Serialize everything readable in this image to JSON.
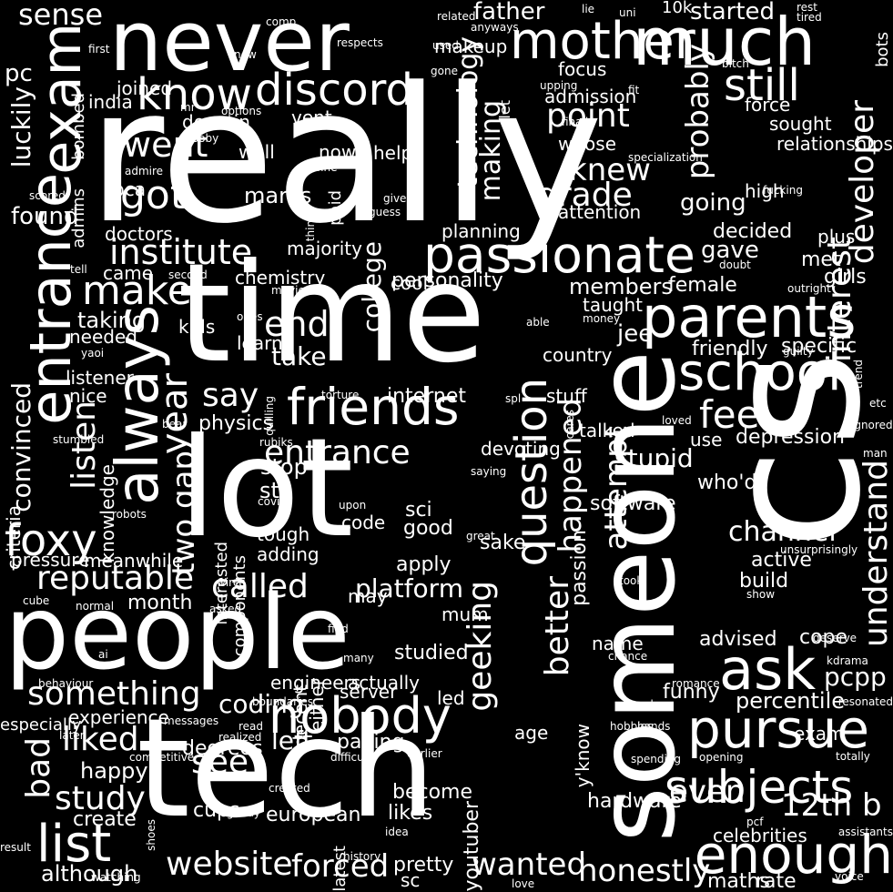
{
  "colors": {
    "background": "#000000",
    "text": "#ffffff"
  },
  "words": [
    {
      "text": "really",
      "size": 5
    },
    {
      "text": "time",
      "size": 5
    },
    {
      "text": "lot",
      "size": 5
    },
    {
      "text": "tech",
      "size": 5
    },
    {
      "text": "people",
      "size": 5
    },
    {
      "text": "someone",
      "size": 5
    },
    {
      "text": "cs",
      "size": 5
    },
    {
      "text": "never",
      "size": 4
    },
    {
      "text": "much",
      "size": 4
    },
    {
      "text": "mother",
      "size": 4
    },
    {
      "text": "exam",
      "size": 4
    },
    {
      "text": "entrance",
      "size": 4
    },
    {
      "text": "always",
      "size": 4
    },
    {
      "text": "friends",
      "size": 4
    },
    {
      "text": "passionate",
      "size": 4
    },
    {
      "text": "parents",
      "size": 4
    },
    {
      "text": "school",
      "size": 4
    },
    {
      "text": "ask",
      "size": 4
    },
    {
      "text": "pursue",
      "size": 4
    },
    {
      "text": "enough",
      "size": 4
    },
    {
      "text": "subjects",
      "size": 4
    },
    {
      "text": "foxy",
      "size": 4
    },
    {
      "text": "list",
      "size": 4
    },
    {
      "text": "nobody",
      "size": 4
    },
    {
      "text": "question",
      "size": 4
    },
    {
      "text": "discord",
      "size": 3
    },
    {
      "text": "know",
      "size": 3
    },
    {
      "text": "still",
      "size": 3
    },
    {
      "text": "got",
      "size": 3
    },
    {
      "text": "make",
      "size": 3
    },
    {
      "text": "went",
      "size": 3
    },
    {
      "text": "institute",
      "size": 3
    },
    {
      "text": "point",
      "size": 3
    },
    {
      "text": "grade",
      "size": 3
    },
    {
      "text": "knew",
      "size": 3
    },
    {
      "text": "probably",
      "size": 3
    },
    {
      "text": "developer",
      "size": 3
    },
    {
      "text": "interest",
      "size": 3
    },
    {
      "text": "feel",
      "size": 3
    },
    {
      "text": "year",
      "size": 3
    },
    {
      "text": "say",
      "size": 3
    },
    {
      "text": "end",
      "size": 3
    },
    {
      "text": "reputable",
      "size": 3
    },
    {
      "text": "called",
      "size": 3
    },
    {
      "text": "something",
      "size": 3
    },
    {
      "text": "bad",
      "size": 3
    },
    {
      "text": "liked",
      "size": 3
    },
    {
      "text": "study",
      "size": 3
    },
    {
      "text": "website",
      "size": 3
    },
    {
      "text": "forced",
      "size": 3
    },
    {
      "text": "wanted",
      "size": 3
    },
    {
      "text": "better",
      "size": 3
    },
    {
      "text": "geeking",
      "size": 3
    },
    {
      "text": "understand",
      "size": 3
    },
    {
      "text": "attempt",
      "size": 3
    },
    {
      "text": "happened",
      "size": 3
    },
    {
      "text": "12th b",
      "size": 3
    },
    {
      "text": "even",
      "size": 3
    },
    {
      "text": "honestly",
      "size": 3
    },
    {
      "text": "technology",
      "size": 3
    },
    {
      "text": "making",
      "size": 3
    },
    {
      "text": "listen",
      "size": 3
    },
    {
      "text": "two gap",
      "size": 3
    },
    {
      "text": "entrance",
      "size": 3
    },
    {
      "text": "see",
      "size": 3
    },
    {
      "text": "channel",
      "size": 3
    },
    {
      "text": "stupid",
      "size": 3
    },
    {
      "text": "platform",
      "size": 3
    },
    {
      "text": "left",
      "size": 3
    },
    {
      "text": "take",
      "size": 3
    },
    {
      "text": "coding",
      "size": 3
    },
    {
      "text": "jee",
      "size": 3
    },
    {
      "text": "pcpp",
      "size": 3
    },
    {
      "text": "sense",
      "size": 2
    },
    {
      "text": "father",
      "size": 2
    },
    {
      "text": "started",
      "size": 2
    },
    {
      "text": "pc",
      "size": 2
    },
    {
      "text": "luckily",
      "size": 2
    },
    {
      "text": "found",
      "size": 2
    },
    {
      "text": "marks",
      "size": 2
    },
    {
      "text": "going",
      "size": 2
    },
    {
      "text": "gave",
      "size": 2
    },
    {
      "text": "taking",
      "size": 2
    },
    {
      "text": "members",
      "size": 2
    },
    {
      "text": "college",
      "size": 2
    },
    {
      "text": "convinced",
      "size": 2
    },
    {
      "text": "month",
      "size": 2
    },
    {
      "text": "sth",
      "size": 2
    },
    {
      "text": "stop",
      "size": 2
    },
    {
      "text": "happy",
      "size": 2
    },
    {
      "text": "although",
      "size": 2
    },
    {
      "text": "percentile",
      "size": 2
    },
    {
      "text": "advised",
      "size": 2
    },
    {
      "text": "cope",
      "size": 2
    },
    {
      "text": "funny",
      "size": 2
    },
    {
      "text": "passion",
      "size": 2
    },
    {
      "text": "specific",
      "size": 2
    },
    {
      "text": "depression",
      "size": 2
    },
    {
      "text": "friendly",
      "size": 2
    },
    {
      "text": "decided",
      "size": 2
    },
    {
      "text": "plus",
      "size": 2
    },
    {
      "text": "girls",
      "size": 2
    },
    {
      "text": "female",
      "size": 2
    },
    {
      "text": "met",
      "size": 2
    },
    {
      "text": "build",
      "size": 2
    },
    {
      "text": "active",
      "size": 2
    },
    {
      "text": "software",
      "size": 2
    },
    {
      "text": "who'd",
      "size": 2
    },
    {
      "text": "sci",
      "size": 2
    },
    {
      "text": "good",
      "size": 2
    },
    {
      "text": "sake",
      "size": 2
    },
    {
      "text": "apply",
      "size": 2
    },
    {
      "text": "studied",
      "size": 2
    },
    {
      "text": "pretty",
      "size": 2
    },
    {
      "text": "likes",
      "size": 2
    },
    {
      "text": "become",
      "size": 2
    },
    {
      "text": "youtuber",
      "size": 2
    },
    {
      "text": "hardware",
      "size": 2
    },
    {
      "text": "exam",
      "size": 2
    },
    {
      "text": "maths",
      "size": 2
    },
    {
      "text": "rate",
      "size": 2
    },
    {
      "text": "celebrities",
      "size": 2
    },
    {
      "text": "cups",
      "size": 2
    },
    {
      "text": "create",
      "size": 2
    },
    {
      "text": "european",
      "size": 2
    },
    {
      "text": "degrees",
      "size": 2
    },
    {
      "text": "paying",
      "size": 2
    },
    {
      "text": "physics",
      "size": 2
    },
    {
      "text": "internet",
      "size": 2
    },
    {
      "text": "stuff",
      "size": 2
    },
    {
      "text": "talked",
      "size": 2
    },
    {
      "text": "devoting",
      "size": 2
    },
    {
      "text": "use",
      "size": 2
    },
    {
      "text": "country",
      "size": 2
    },
    {
      "text": "taught",
      "size": 2
    },
    {
      "text": "personality",
      "size": 2
    },
    {
      "text": "majority",
      "size": 2
    },
    {
      "text": "chemistry",
      "size": 2
    },
    {
      "text": "learnt",
      "size": 2
    },
    {
      "text": "kids",
      "size": 2
    },
    {
      "text": "needed",
      "size": 2
    },
    {
      "text": "listener",
      "size": 2
    },
    {
      "text": "nice",
      "size": 2
    },
    {
      "text": "pressure",
      "size": 2
    },
    {
      "text": "meanwhile",
      "size": 2
    },
    {
      "text": "criteria",
      "size": 2
    },
    {
      "text": "knowledge",
      "size": 2
    },
    {
      "text": "components",
      "size": 2
    },
    {
      "text": "interested",
      "size": 2
    },
    {
      "text": "tough",
      "size": 2
    },
    {
      "text": "adding",
      "size": 2
    },
    {
      "text": "code",
      "size": 2
    },
    {
      "text": "decent",
      "size": 2
    },
    {
      "text": "either",
      "size": 2
    },
    {
      "text": "engineers",
      "size": 2
    },
    {
      "text": "actually",
      "size": 2
    },
    {
      "text": "server",
      "size": 2
    },
    {
      "text": "led",
      "size": 2
    },
    {
      "text": "age",
      "size": 2
    },
    {
      "text": "y'know",
      "size": 2
    },
    {
      "text": "experience",
      "size": 2
    },
    {
      "text": "especially",
      "size": 2
    },
    {
      "text": "may",
      "size": 2
    },
    {
      "text": "mum",
      "size": 2
    },
    {
      "text": "name",
      "size": 2
    },
    {
      "text": "sc",
      "size": 2
    },
    {
      "text": "latest",
      "size": 2
    },
    {
      "text": "came",
      "size": 2
    },
    {
      "text": "bca",
      "size": 2
    },
    {
      "text": "doctors",
      "size": 2
    },
    {
      "text": "admins",
      "size": 2
    },
    {
      "text": "bombed",
      "size": 2
    },
    {
      "text": "india",
      "size": 2
    },
    {
      "text": "joined",
      "size": 2
    },
    {
      "text": "domain",
      "size": 2
    },
    {
      "text": "vent",
      "size": 2
    },
    {
      "text": "well",
      "size": 2
    },
    {
      "text": "now",
      "size": 2
    },
    {
      "text": "helps",
      "size": 2
    },
    {
      "text": "paid",
      "size": 2
    },
    {
      "text": "whose",
      "size": 2
    },
    {
      "text": "attention",
      "size": 2
    },
    {
      "text": "admission",
      "size": 2
    },
    {
      "text": "focus",
      "size": 2
    },
    {
      "text": "makeup",
      "size": 2
    },
    {
      "text": "force",
      "size": 2
    },
    {
      "text": "sought",
      "size": 2
    },
    {
      "text": "relationships",
      "size": 2
    },
    {
      "text": "high",
      "size": 2
    },
    {
      "text": "bots",
      "size": 2
    },
    {
      "text": "cool",
      "size": 2
    },
    {
      "text": "planning",
      "size": 2
    },
    {
      "text": "10k",
      "size": 2
    },
    {
      "text": "let",
      "size": 2
    },
    {
      "text": "comp",
      "size": 2
    },
    {
      "text": "related",
      "size": 2
    },
    {
      "text": "lie",
      "size": 1
    },
    {
      "text": "uni",
      "size": 1
    },
    {
      "text": "rest",
      "size": 1
    },
    {
      "text": "tired",
      "size": 1
    },
    {
      "text": "anyways",
      "size": 1
    },
    {
      "text": "respects",
      "size": 1
    },
    {
      "text": "first",
      "size": 1
    },
    {
      "text": "new",
      "size": 1
    },
    {
      "text": "used",
      "size": 1
    },
    {
      "text": "gone",
      "size": 1
    },
    {
      "text": "bitch",
      "size": 1
    },
    {
      "text": "upping",
      "size": 1
    },
    {
      "text": "fit",
      "size": 1
    },
    {
      "text": "mr",
      "size": 1
    },
    {
      "text": "options",
      "size": 1
    },
    {
      "text": "finally",
      "size": 1
    },
    {
      "text": "scooby",
      "size": 1
    },
    {
      "text": "admire",
      "size": 1
    },
    {
      "text": "fine",
      "size": 1
    },
    {
      "text": "specialization",
      "size": 1
    },
    {
      "text": "fucking",
      "size": 1
    },
    {
      "text": "scored",
      "size": 1
    },
    {
      "text": "give",
      "size": 1
    },
    {
      "text": "guess",
      "size": 1
    },
    {
      "text": "think",
      "size": 1
    },
    {
      "text": "doubt",
      "size": 1
    },
    {
      "text": "tell",
      "size": 1
    },
    {
      "text": "second",
      "size": 1
    },
    {
      "text": "movies",
      "size": 1
    },
    {
      "text": "outright",
      "size": 1
    },
    {
      "text": "ones",
      "size": 1
    },
    {
      "text": "yaoi",
      "size": 1
    },
    {
      "text": "able",
      "size": 1
    },
    {
      "text": "money",
      "size": 1
    },
    {
      "text": "guilty",
      "size": 1
    },
    {
      "text": "trend",
      "size": 1
    },
    {
      "text": "torture",
      "size": 1
    },
    {
      "text": "spl",
      "size": 1
    },
    {
      "text": "quilling",
      "size": 1
    },
    {
      "text": "bear",
      "size": 1
    },
    {
      "text": "cares",
      "size": 1
    },
    {
      "text": "loved",
      "size": 1
    },
    {
      "text": "etc",
      "size": 1
    },
    {
      "text": "ignored",
      "size": 1
    },
    {
      "text": "stumbled",
      "size": 1
    },
    {
      "text": "rubiks",
      "size": 1
    },
    {
      "text": "man",
      "size": 1
    },
    {
      "text": "saying",
      "size": 1
    },
    {
      "text": "covid",
      "size": 1
    },
    {
      "text": "upon",
      "size": 1
    },
    {
      "text": "robots",
      "size": 1
    },
    {
      "text": "great",
      "size": 1
    },
    {
      "text": "wires",
      "size": 1
    },
    {
      "text": "unsurprisingly",
      "size": 1
    },
    {
      "text": "took",
      "size": 1
    },
    {
      "text": "cube",
      "size": 1
    },
    {
      "text": "normal",
      "size": 1
    },
    {
      "text": "asked",
      "size": 1
    },
    {
      "text": "show",
      "size": 1
    },
    {
      "text": "find",
      "size": 1
    },
    {
      "text": "deserve",
      "size": 1
    },
    {
      "text": "ai",
      "size": 1
    },
    {
      "text": "many",
      "size": 1
    },
    {
      "text": "chance",
      "size": 1
    },
    {
      "text": "kdrama",
      "size": 1
    },
    {
      "text": "behaviour",
      "size": 1
    },
    {
      "text": "romance",
      "size": 1
    },
    {
      "text": "boundaries",
      "size": 1
    },
    {
      "text": "already",
      "size": 1
    },
    {
      "text": "resonated",
      "size": 1
    },
    {
      "text": "messages",
      "size": 1
    },
    {
      "text": "read",
      "size": 1
    },
    {
      "text": "hobbies",
      "size": 1
    },
    {
      "text": "hands",
      "size": 1
    },
    {
      "text": "later",
      "size": 1
    },
    {
      "text": "realized",
      "size": 1
    },
    {
      "text": "difficulty",
      "size": 1
    },
    {
      "text": "earlier",
      "size": 1
    },
    {
      "text": "spending",
      "size": 1
    },
    {
      "text": "opening",
      "size": 1
    },
    {
      "text": "totally",
      "size": 1
    },
    {
      "text": "competitive",
      "size": 1
    },
    {
      "text": "created",
      "size": 1
    },
    {
      "text": "goody",
      "size": 1
    },
    {
      "text": "idea",
      "size": 1
    },
    {
      "text": "pcf",
      "size": 1
    },
    {
      "text": "assistants",
      "size": 1
    },
    {
      "text": "result",
      "size": 1
    },
    {
      "text": "shoes",
      "size": 1
    },
    {
      "text": "history",
      "size": 1
    },
    {
      "text": "watching",
      "size": 1
    },
    {
      "text": "love",
      "size": 1
    },
    {
      "text": "voice",
      "size": 1
    },
    {
      "text": "competitors",
      "size": 1
    },
    {
      "text": "fairytale",
      "size": 1
    }
  ]
}
